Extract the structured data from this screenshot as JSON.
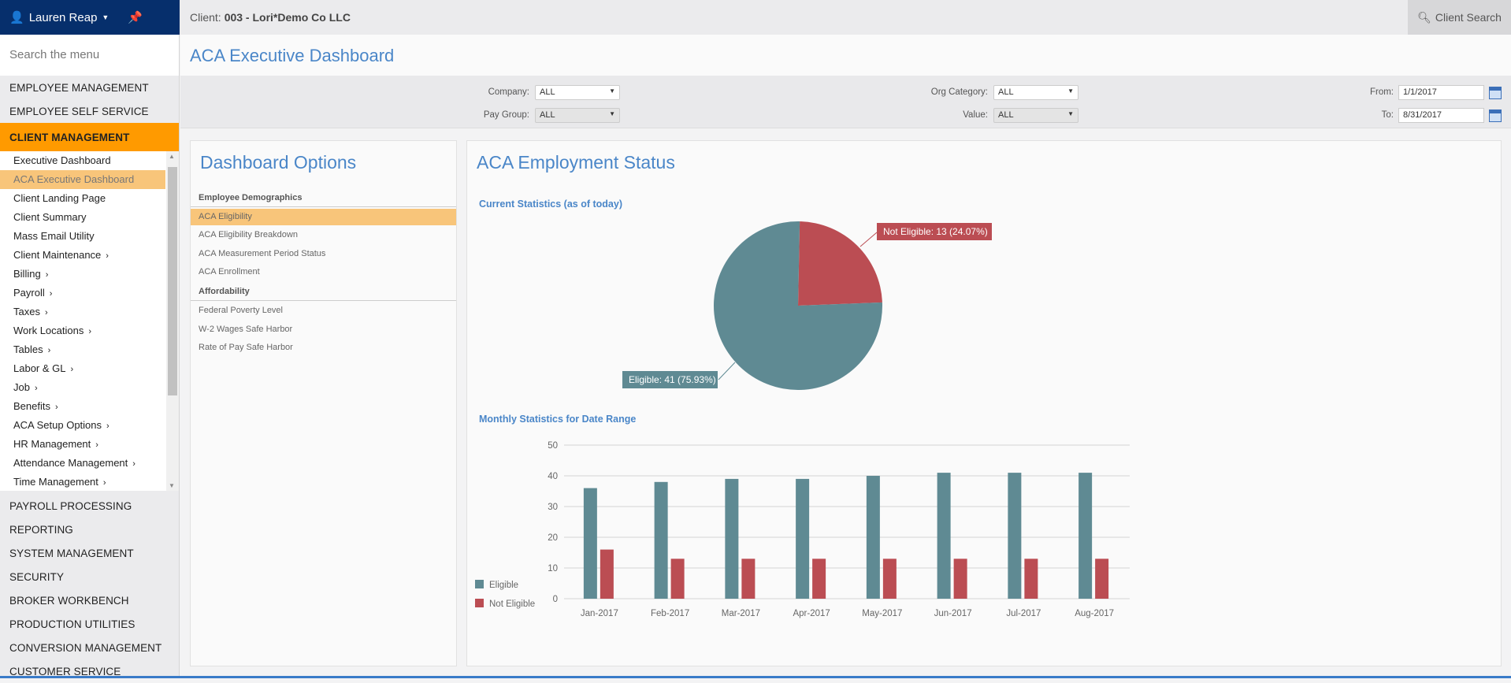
{
  "user": {
    "name": "Lauren Reap",
    "icon": "user-icon",
    "pin_icon": "pin-icon"
  },
  "client": {
    "label": "Client:",
    "value": "003 - Lori*Demo Co LLC"
  },
  "client_search": "Client Search",
  "sidebar": {
    "search_placeholder": "Search the menu",
    "sections_top": [
      "EMPLOYEE MANAGEMENT",
      "EMPLOYEE SELF SERVICE"
    ],
    "active_section": "CLIENT MANAGEMENT",
    "submenu": [
      {
        "label": "Executive Dashboard",
        "chev": ""
      },
      {
        "label": "ACA Executive Dashboard",
        "chev": "",
        "selected": true
      },
      {
        "label": "Client Landing Page",
        "chev": ""
      },
      {
        "label": "Client Summary",
        "chev": ""
      },
      {
        "label": "Mass Email Utility",
        "chev": ""
      },
      {
        "label": "Client Maintenance",
        "chev": "›"
      },
      {
        "label": "Billing",
        "chev": "›"
      },
      {
        "label": "Payroll",
        "chev": "›"
      },
      {
        "label": "Taxes",
        "chev": "›"
      },
      {
        "label": "Work Locations",
        "chev": "›"
      },
      {
        "label": "Tables",
        "chev": "›"
      },
      {
        "label": "Labor & GL",
        "chev": "›"
      },
      {
        "label": "Job",
        "chev": "›"
      },
      {
        "label": "Benefits",
        "chev": "›"
      },
      {
        "label": "ACA Setup Options",
        "chev": "›"
      },
      {
        "label": "HR Management",
        "chev": "›"
      },
      {
        "label": "Attendance Management",
        "chev": "›"
      },
      {
        "label": "Time Management",
        "chev": "›"
      }
    ],
    "sections_bottom": [
      "PAYROLL PROCESSING",
      "REPORTING",
      "SYSTEM MANAGEMENT",
      "SECURITY",
      "BROKER WORKBENCH",
      "PRODUCTION UTILITIES",
      "CONVERSION MANAGEMENT",
      "CUSTOMER SERVICE"
    ]
  },
  "page_title": "ACA Executive Dashboard",
  "filters": {
    "company": {
      "label": "Company:",
      "value": "ALL"
    },
    "pay_group": {
      "label": "Pay Group:",
      "value": "ALL"
    },
    "org_category": {
      "label": "Org Category:",
      "value": "ALL"
    },
    "value": {
      "label": "Value:",
      "value": "ALL"
    },
    "from": {
      "label": "From:",
      "value": "1/1/2017"
    },
    "to": {
      "label": "To:",
      "value": "8/31/2017"
    }
  },
  "options": {
    "title": "Dashboard Options",
    "groups": [
      {
        "label": "Employee Demographics",
        "items": [
          "ACA Eligibility",
          "ACA Eligibility Breakdown",
          "ACA Measurement Period Status",
          "ACA Enrollment"
        ]
      },
      {
        "label": "Affordability",
        "items": [
          "Federal Poverty Level",
          "W-2 Wages Safe Harbor",
          "Rate of Pay Safe Harbor"
        ]
      }
    ],
    "selected": "ACA Eligibility"
  },
  "status": {
    "title": "ACA Employment Status",
    "current_heading": "Current Statistics (as of today)",
    "monthly_heading": "Monthly Statistics for Date Range"
  },
  "colors": {
    "eligible": "#5f8a93",
    "not_eligible": "#bb4d53",
    "accent": "#ff9a00",
    "navy": "#062f6c"
  },
  "chart_data": [
    {
      "type": "pie",
      "slices": [
        {
          "name": "Not Eligible",
          "value": 13,
          "percent": 24.07,
          "label": "Not Eligible: 13 (24.07%)"
        },
        {
          "name": "Eligible",
          "value": 41,
          "percent": 75.93,
          "label": "Eligible: 41 (75.93%)"
        }
      ]
    },
    {
      "type": "bar",
      "categories": [
        "Jan-2017",
        "Feb-2017",
        "Mar-2017",
        "Apr-2017",
        "May-2017",
        "Jun-2017",
        "Jul-2017",
        "Aug-2017"
      ],
      "series": [
        {
          "name": "Eligible",
          "values": [
            36,
            38,
            39,
            39,
            40,
            41,
            41,
            41
          ]
        },
        {
          "name": "Not Eligible",
          "values": [
            16,
            13,
            13,
            13,
            13,
            13,
            13,
            13
          ]
        }
      ],
      "ylim": [
        0,
        50
      ],
      "yticks": [
        0,
        10,
        20,
        30,
        40,
        50
      ],
      "grid": true,
      "legend": "bottom-left"
    }
  ]
}
